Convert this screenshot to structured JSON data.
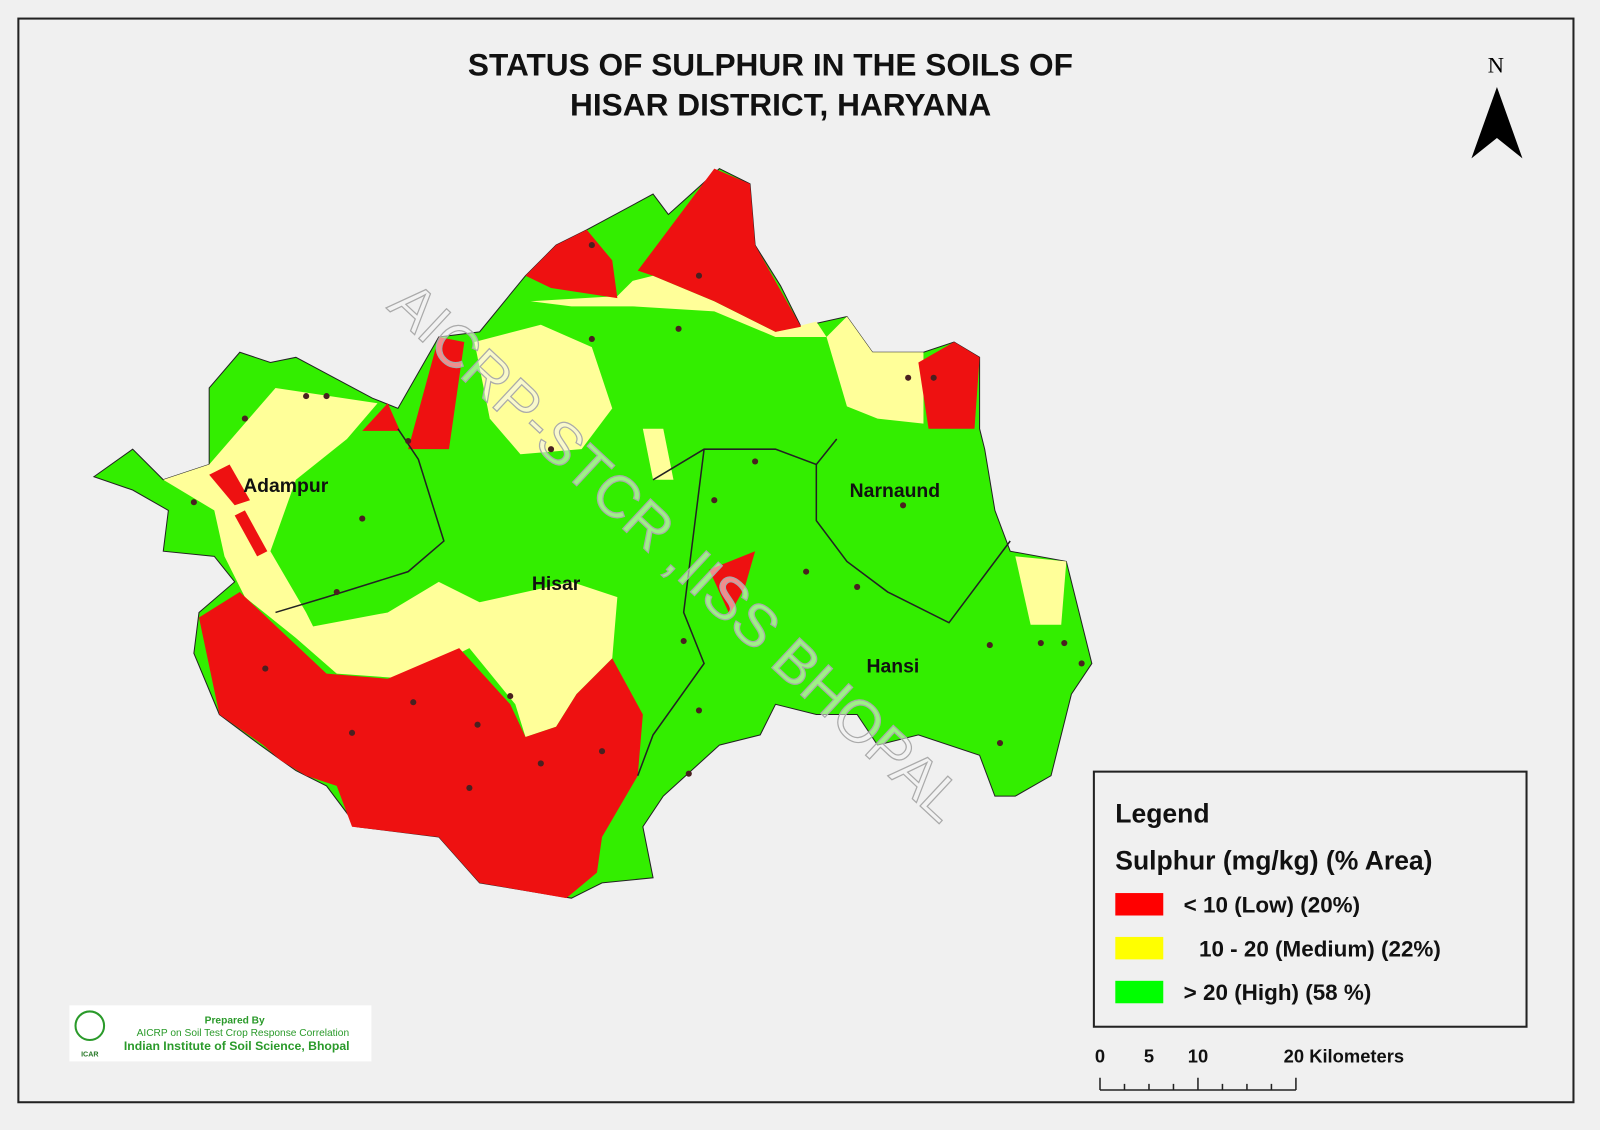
{
  "title": {
    "line1": "STATUS OF SULPHUR   IN THE SOILS OF",
    "line2": "HISAR  DISTRICT, HARYANA"
  },
  "north_arrow": "N",
  "watermark": "AICRP-STCR ,IISS BHOPAL",
  "regions": [
    "Adampur",
    "Hisar",
    "Narnaund",
    "Hansi"
  ],
  "legend": {
    "heading": "Legend",
    "title": "Sulphur (mg/kg) (% Area)",
    "items": [
      {
        "label": "< 10 (Low) (20%)",
        "color": "#ff0000"
      },
      {
        "label": "10 - 20 (Medium) (22%)",
        "color": "#ffff00"
      },
      {
        "label": "> 20 (High) (58 %)",
        "color": "#00ff00"
      }
    ]
  },
  "scale_bar": {
    "labels": [
      "0",
      "5",
      "10",
      "20 Kilometers"
    ]
  },
  "credit": {
    "line1": "Prepared By",
    "line2": "AICRP on Soil Test Crop Response Correlation",
    "line3": "Indian Institute of Soil Science, Bhopal",
    "logo": "ICAR"
  }
}
